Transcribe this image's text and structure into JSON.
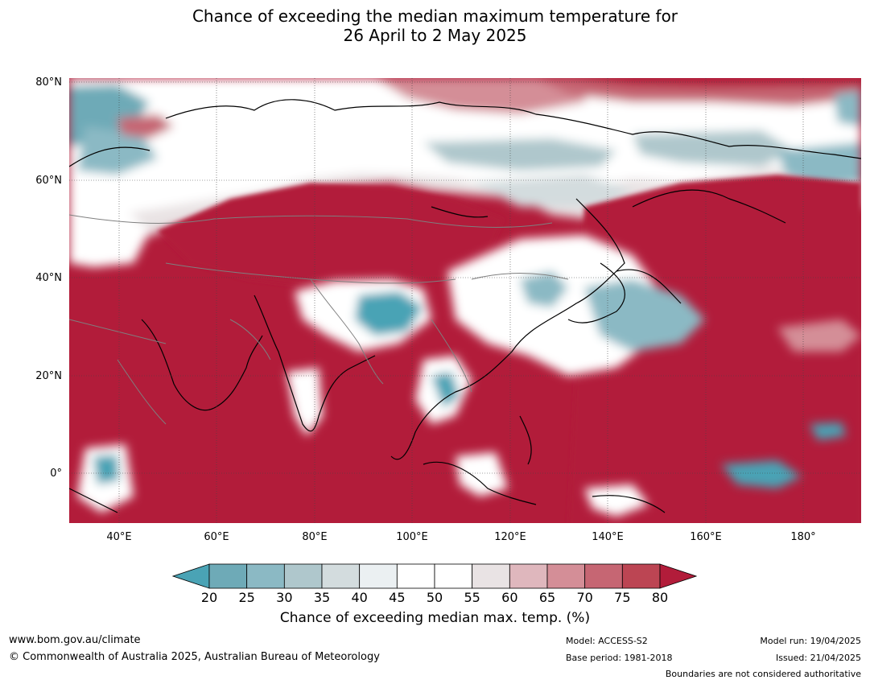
{
  "title": {
    "line1": "Chance of exceeding the median maximum temperature for",
    "line2": "26 April to 2 May 2025"
  },
  "axes": {
    "y_ticks": [
      "80°N",
      "60°N",
      "40°N",
      "20°N",
      "0°"
    ],
    "x_ticks": [
      "40°E",
      "60°E",
      "80°E",
      "100°E",
      "120°E",
      "140°E",
      "160°E",
      "180°"
    ]
  },
  "colorbar": {
    "ticks": [
      "20",
      "25",
      "30",
      "35",
      "40",
      "45",
      "50",
      "55",
      "60",
      "65",
      "70",
      "75",
      "80"
    ],
    "colors": [
      "#4aa3b5",
      "#6eaab7",
      "#8bb9c4",
      "#afc7cc",
      "#d3dcde",
      "#ebf0f2",
      "#ffffff",
      "#ffffff",
      "#e9e3e4",
      "#dfb7bd",
      "#d48e97",
      "#c66673",
      "#bc4553",
      "#b21c3a"
    ],
    "label": "Chance of exceeding median max. temp. (%)"
  },
  "footer": {
    "website": "www.bom.gov.au/climate",
    "copyright": "© Commonwealth of Australia 2025, Australian Bureau of Meteorology",
    "model": "Model: ACCESS-S2",
    "base_period": "Base period: 1981-2018",
    "model_run": "Model run: 19/04/2025",
    "issued": "Issued: 21/04/2025",
    "disclaimer": "Boundaries are not considered authoritative"
  }
}
